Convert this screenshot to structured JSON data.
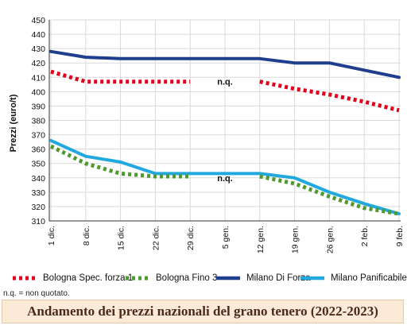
{
  "chart_data": {
    "type": "line",
    "title": "",
    "xlabel": "",
    "ylabel": "Prezzi (euro/t)",
    "ylim": [
      310,
      450
    ],
    "yticks": [
      310,
      320,
      330,
      340,
      350,
      360,
      370,
      380,
      390,
      400,
      410,
      420,
      430,
      440,
      450
    ],
    "categories": [
      "1 dic.",
      "8 dic.",
      "15 dic.",
      "22 dic.",
      "29 dic.",
      "5 gen.",
      "12 gen.",
      "19 gen.",
      "26 gen.",
      "2 feb.",
      "9 feb."
    ],
    "grid": true,
    "legend_position": "bottom",
    "series": [
      {
        "name": "Bologna Spec. forza 1",
        "color": "#e2001a",
        "style": "dotted",
        "values": [
          414,
          407,
          407,
          407,
          407,
          null,
          407,
          402,
          398,
          393,
          387
        ]
      },
      {
        "name": "Bologna Fino 3",
        "color": "#4e9a2c",
        "style": "dotted",
        "values": [
          362,
          350,
          343,
          341,
          341,
          null,
          341,
          336,
          327,
          319,
          315
        ]
      },
      {
        "name": "Milano Di Forza",
        "color": "#1f3f8e",
        "style": "solid",
        "values": [
          428,
          424,
          423,
          423,
          423,
          423,
          423,
          420,
          420,
          415,
          410
        ]
      },
      {
        "name": "Milano Panificabile",
        "color": "#21a8df",
        "style": "solid",
        "values": [
          366,
          355,
          351,
          343,
          343,
          343,
          343,
          340,
          330,
          322,
          315
        ]
      }
    ],
    "annotations": [
      {
        "text": "n.q.",
        "category": "5 gen.",
        "value": 407
      },
      {
        "text": "n.q.",
        "category": "5 gen.",
        "value": 340
      }
    ]
  },
  "note": "n.q. = non quotato.",
  "caption": "Andamento dei prezzi nazionali del grano tenero (2022-2023)",
  "colors": {
    "caption_bg": "#fbead6",
    "grid": "#d9d9d9",
    "axis": "#333333"
  }
}
